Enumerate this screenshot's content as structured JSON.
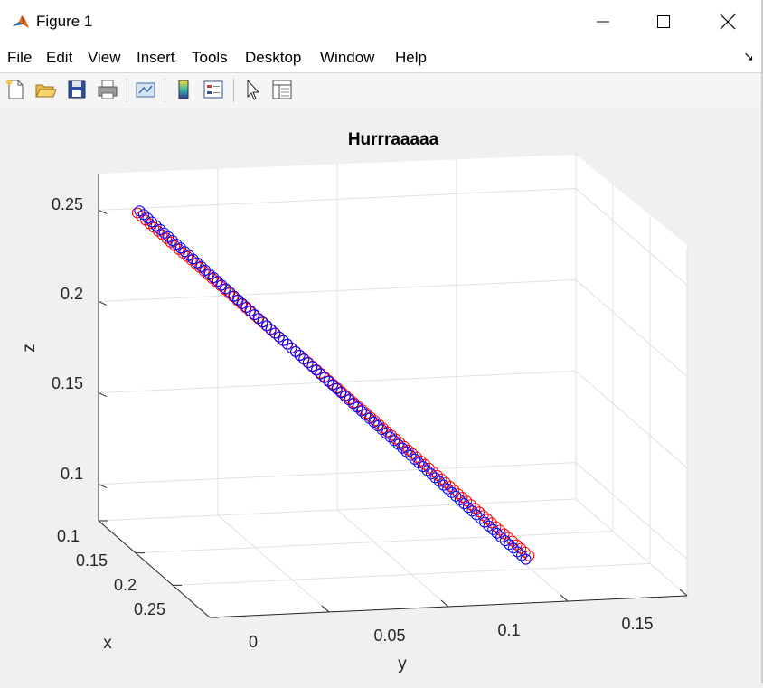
{
  "window": {
    "title": "Figure 1",
    "controls": [
      "minimize",
      "maximize",
      "close"
    ]
  },
  "menu": {
    "items": [
      "File",
      "Edit",
      "View",
      "Insert",
      "Tools",
      "Desktop",
      "Window",
      "Help"
    ]
  },
  "toolbar": {
    "icons": [
      "new-figure-icon",
      "open-file-icon",
      "save-icon",
      "print-icon",
      "link-plot-icon",
      "insert-colorbar-icon",
      "insert-legend-icon",
      "edit-plot-icon",
      "property-inspector-icon"
    ]
  },
  "colors": {
    "series_red": "#ff0000",
    "series_blue": "#0000ff",
    "grid": "#e0e0e0",
    "axis": "#262626"
  },
  "chart_data": {
    "type": "scatter3d",
    "title": "Hurrraaaaa",
    "xlabel": "x",
    "ylabel": "y",
    "zlabel": "z",
    "xticks": [
      "0.1",
      "0.15",
      "0.2",
      "0.25"
    ],
    "yticks": [
      "0",
      "0.05",
      "0.1",
      "0.15"
    ],
    "zticks": [
      "0.1",
      "0.15",
      "0.2",
      "0.25"
    ],
    "marker": "o",
    "grid": true,
    "series": [
      {
        "color": "#ff0000",
        "start": {
          "x": 0.12,
          "y": -0.04,
          "z": 0.255
        },
        "end": {
          "x": 0.14,
          "y": 0.118,
          "z": 0.065
        },
        "count": 95
      },
      {
        "color": "#0000ff",
        "start": {
          "x": 0.12,
          "y": -0.039,
          "z": 0.256
        },
        "end": {
          "x": 0.145,
          "y": 0.115,
          "z": 0.065
        },
        "count": 95
      }
    ]
  }
}
